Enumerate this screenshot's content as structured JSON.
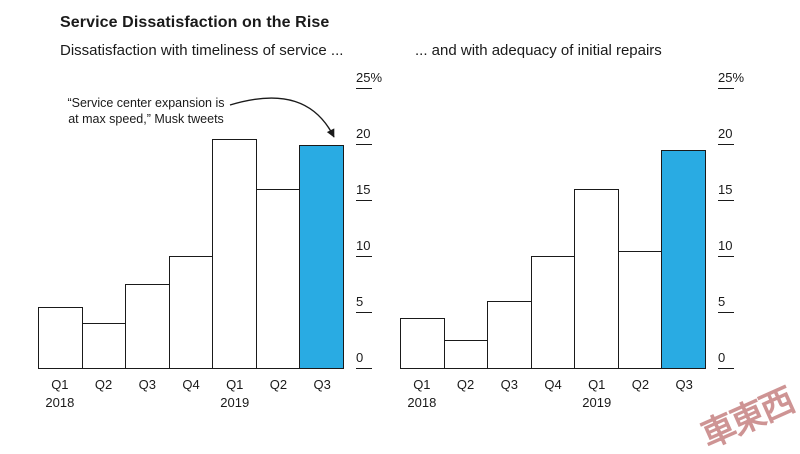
{
  "header": {
    "title": "Service Dissatisfaction on the Rise",
    "subtitle_left": "Dissatisfaction with timeliness of service ...",
    "subtitle_right": "... and with adequacy of initial repairs"
  },
  "annotation": {
    "text": "“Service center expansion is at max speed,” Musk tweets"
  },
  "colors": {
    "highlight": "#29abe3",
    "bar_fill": "#ffffff",
    "bar_border": "#1a1a1a"
  },
  "watermark": "車東西",
  "chart_data": [
    {
      "type": "bar",
      "title": "Dissatisfaction with timeliness of service ...",
      "categories": [
        "Q1",
        "Q2",
        "Q3",
        "Q4",
        "Q1",
        "Q2",
        "Q3"
      ],
      "year_labels": [
        {
          "index": 0,
          "label": "2018"
        },
        {
          "index": 4,
          "label": "2019"
        }
      ],
      "values": [
        5.5,
        4,
        7.5,
        10,
        20.5,
        16,
        20
      ],
      "highlight_index": 6,
      "xlabel": "",
      "ylabel": "",
      "ylim": [
        0,
        25
      ],
      "grid": false,
      "legend": false,
      "yticks": [
        {
          "value": 25,
          "label": "25%"
        },
        {
          "value": 20,
          "label": "20"
        },
        {
          "value": 15,
          "label": "15"
        },
        {
          "value": 10,
          "label": "10"
        },
        {
          "value": 5,
          "label": "5"
        },
        {
          "value": 0,
          "label": "0"
        }
      ]
    },
    {
      "type": "bar",
      "title": "... and with adequacy of initial repairs",
      "categories": [
        "Q1",
        "Q2",
        "Q3",
        "Q4",
        "Q1",
        "Q2",
        "Q3"
      ],
      "year_labels": [
        {
          "index": 0,
          "label": "2018"
        },
        {
          "index": 4,
          "label": "2019"
        }
      ],
      "values": [
        4.5,
        2.5,
        6,
        10,
        16,
        10.5,
        19.5
      ],
      "highlight_index": 6,
      "xlabel": "",
      "ylabel": "",
      "ylim": [
        0,
        25
      ],
      "grid": false,
      "legend": false,
      "yticks": [
        {
          "value": 25,
          "label": "25%"
        },
        {
          "value": 20,
          "label": "20"
        },
        {
          "value": 15,
          "label": "15"
        },
        {
          "value": 10,
          "label": "10"
        },
        {
          "value": 5,
          "label": "5"
        },
        {
          "value": 0,
          "label": "0"
        }
      ]
    }
  ]
}
